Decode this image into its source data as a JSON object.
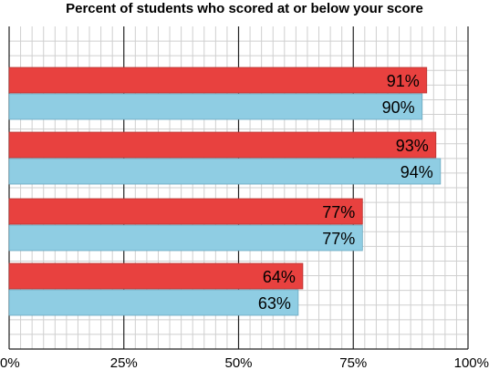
{
  "chart_data": {
    "type": "bar",
    "orientation": "horizontal",
    "title": "Percent of students who scored at or below your score",
    "xlabel": "",
    "ylabel": "",
    "xlim": [
      0,
      100
    ],
    "x_ticks": [
      "0%",
      "25%",
      "50%",
      "75%",
      "100%"
    ],
    "categories": [
      "",
      "",
      "",
      ""
    ],
    "series": [
      {
        "color": "#e8413f",
        "values": [
          91,
          93,
          77,
          64
        ],
        "labels": [
          "91%",
          "93%",
          "77%",
          "64%"
        ]
      },
      {
        "color": "#8fcde3",
        "values": [
          90,
          94,
          77,
          63
        ],
        "labels": [
          "90%",
          "94%",
          "77%",
          "63%"
        ]
      }
    ],
    "grid": true,
    "legend": "none"
  }
}
